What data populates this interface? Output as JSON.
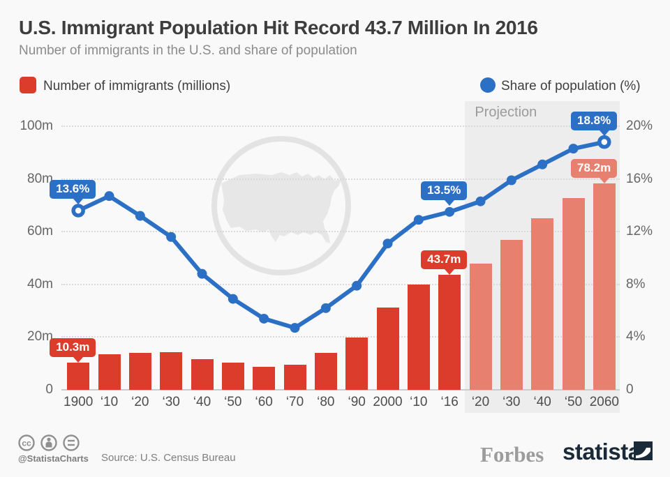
{
  "header": {
    "title": "U.S. Immigrant Population Hit Record 43.7 Million In 2016",
    "subtitle": "Number of immigrants in the U.S. and share of population"
  },
  "chart_data": {
    "type": "bar+line",
    "title": "U.S. Immigrant Population Hit Record 43.7 Million In 2016",
    "categories": [
      "1900",
      "‘10",
      "‘20",
      "‘30",
      "‘40",
      "‘50",
      "‘60",
      "‘70",
      "‘80",
      "‘90",
      "2000",
      "‘10",
      "‘16",
      "‘20",
      "‘30",
      "‘40",
      "‘50",
      "2060"
    ],
    "series": [
      {
        "name": "Number of immigrants (millions)",
        "type": "bar",
        "color": "#dc3c2b",
        "projected_color": "#e8806f",
        "values": [
          10.3,
          13.5,
          13.9,
          14.2,
          11.6,
          10.3,
          8.7,
          9.5,
          14.1,
          19.8,
          31.1,
          40.0,
          43.7,
          48.0,
          56.9,
          65.0,
          72.7,
          78.2
        ]
      },
      {
        "name": "Share of population (%)",
        "type": "line",
        "color": "#2c70c5",
        "values": [
          13.6,
          14.7,
          13.2,
          11.6,
          8.8,
          6.9,
          5.4,
          4.7,
          6.2,
          7.9,
          11.1,
          12.9,
          13.5,
          14.3,
          15.9,
          17.1,
          18.3,
          18.8
        ],
        "open_markers": [
          0,
          17
        ]
      }
    ],
    "projection_start_index": 13,
    "projection_label": "Projection",
    "left_axis": {
      "max": 100,
      "ticks": [
        100,
        80,
        60,
        40,
        20,
        0
      ],
      "labels": [
        "100m",
        "80m",
        "60m",
        "40m",
        "20m",
        "0"
      ]
    },
    "right_axis": {
      "max": 20,
      "ticks": [
        20,
        16,
        12,
        8,
        4,
        0
      ],
      "labels": [
        "20%",
        "16%",
        "12%",
        "8%",
        "4%",
        "0"
      ]
    },
    "grid": "dotted horizontal",
    "legend_position": "top",
    "annotations": [
      {
        "label": "13.6%",
        "series": "share",
        "index": 0,
        "color": "blue"
      },
      {
        "label": "13.5%",
        "series": "share",
        "index": 12,
        "color": "blue"
      },
      {
        "label": "18.8%",
        "series": "share",
        "index": 17,
        "color": "blue"
      },
      {
        "label": "10.3m",
        "series": "immigrants",
        "index": 0,
        "color": "red"
      },
      {
        "label": "43.7m",
        "series": "immigrants",
        "index": 12,
        "color": "red"
      },
      {
        "label": "78.2m",
        "series": "immigrants",
        "index": 17,
        "color": "salmon"
      }
    ],
    "colors": {
      "blue": "#2c70c5",
      "red": "#dc3c2b",
      "salmon": "#e8806f"
    }
  },
  "footer": {
    "handle": "@StatistaCharts",
    "source": "Source: U.S. Census Bureau",
    "forbes": "Forbes",
    "statista": "statista"
  }
}
